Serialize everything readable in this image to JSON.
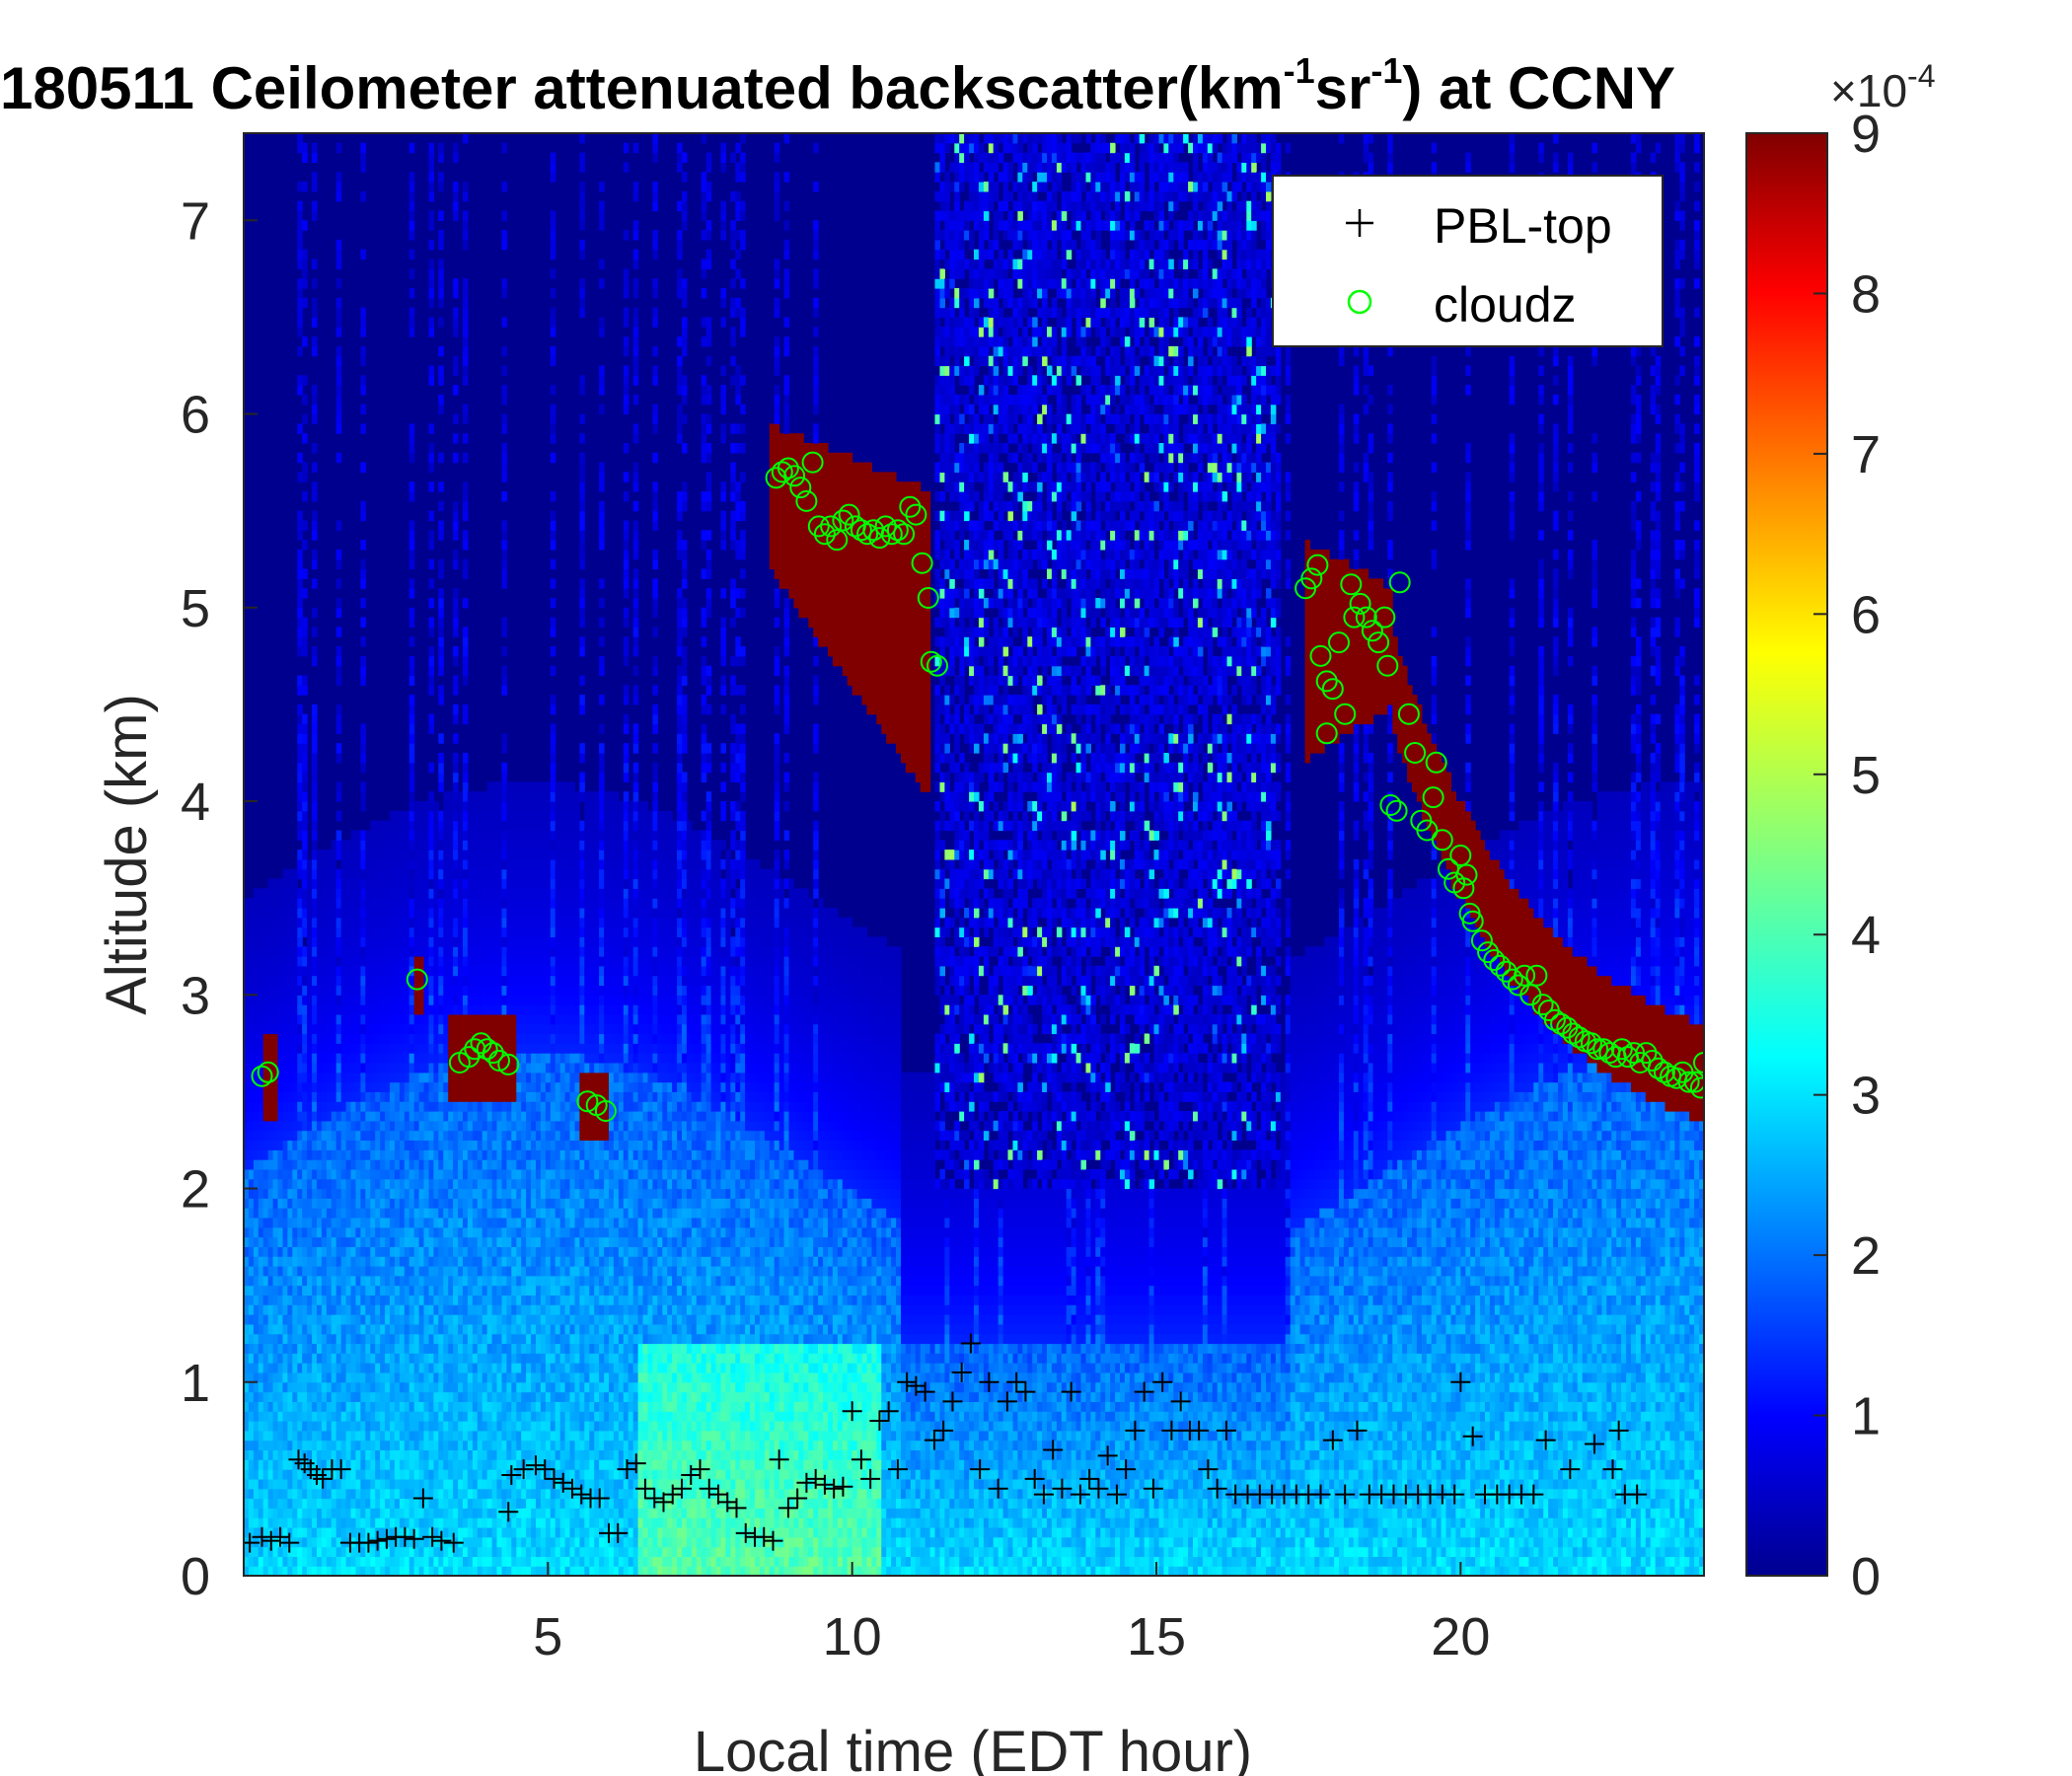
{
  "chart_data": {
    "type": "heatmap",
    "title_parts": {
      "prefix": "180511 Ceilometer attenuated backscatter(km",
      "sup1": "-1",
      "mid": "sr",
      "sup2": "-1",
      "suffix": ") at CCNY"
    },
    "xlabel": "Local time (EDT hour)",
    "ylabel": "Altitude (km)",
    "xlim": [
      0,
      24
    ],
    "ylim": [
      0,
      7.45
    ],
    "xticks": [
      5,
      10,
      15,
      20
    ],
    "yticks": [
      0,
      1,
      2,
      3,
      4,
      5,
      6,
      7
    ],
    "colorbar": {
      "colormap": "jet",
      "range": [
        0,
        9
      ],
      "ticks": [
        0,
        1,
        2,
        3,
        4,
        5,
        6,
        7,
        8,
        9
      ],
      "multiplier_label": "×10",
      "multiplier_exponent": "-4"
    },
    "grid": false,
    "legend": {
      "placement": "top-right",
      "entries": [
        {
          "label": "PBL-top",
          "marker": "+",
          "color": "#000000"
        },
        {
          "label": "cloudz",
          "marker": "o",
          "color": "#00ff00"
        }
      ]
    },
    "series": [
      {
        "name": "PBL-top",
        "points": [
          [
            0.1,
            0.17
          ],
          [
            0.3,
            0.2
          ],
          [
            0.45,
            0.18
          ],
          [
            0.6,
            0.2
          ],
          [
            0.75,
            0.17
          ],
          [
            0.9,
            0.6
          ],
          [
            1.0,
            0.58
          ],
          [
            1.1,
            0.55
          ],
          [
            1.2,
            0.52
          ],
          [
            1.3,
            0.5
          ],
          [
            1.45,
            0.55
          ],
          [
            1.6,
            0.55
          ],
          [
            1.75,
            0.17
          ],
          [
            1.9,
            0.17
          ],
          [
            2.05,
            0.17
          ],
          [
            2.2,
            0.18
          ],
          [
            2.35,
            0.19
          ],
          [
            2.5,
            0.2
          ],
          [
            2.65,
            0.2
          ],
          [
            2.8,
            0.19
          ],
          [
            2.95,
            0.4
          ],
          [
            3.1,
            0.2
          ],
          [
            3.25,
            0.18
          ],
          [
            3.45,
            0.17
          ],
          [
            4.35,
            0.33
          ],
          [
            4.4,
            0.52
          ],
          [
            4.6,
            0.55
          ],
          [
            4.8,
            0.57
          ],
          [
            4.95,
            0.55
          ],
          [
            5.1,
            0.5
          ],
          [
            5.25,
            0.48
          ],
          [
            5.4,
            0.45
          ],
          [
            5.55,
            0.42
          ],
          [
            5.7,
            0.4
          ],
          [
            5.85,
            0.4
          ],
          [
            6.0,
            0.22
          ],
          [
            6.15,
            0.22
          ],
          [
            6.3,
            0.55
          ],
          [
            6.45,
            0.58
          ],
          [
            6.6,
            0.45
          ],
          [
            6.75,
            0.4
          ],
          [
            6.9,
            0.38
          ],
          [
            7.05,
            0.42
          ],
          [
            7.2,
            0.45
          ],
          [
            7.35,
            0.52
          ],
          [
            7.5,
            0.55
          ],
          [
            7.65,
            0.45
          ],
          [
            7.8,
            0.42
          ],
          [
            7.95,
            0.38
          ],
          [
            8.1,
            0.35
          ],
          [
            8.25,
            0.22
          ],
          [
            8.4,
            0.2
          ],
          [
            8.55,
            0.2
          ],
          [
            8.7,
            0.18
          ],
          [
            8.8,
            0.6
          ],
          [
            8.95,
            0.35
          ],
          [
            9.1,
            0.4
          ],
          [
            9.25,
            0.48
          ],
          [
            9.4,
            0.5
          ],
          [
            9.55,
            0.47
          ],
          [
            9.7,
            0.45
          ],
          [
            9.85,
            0.46
          ],
          [
            10.0,
            0.85
          ],
          [
            10.15,
            0.6
          ],
          [
            10.3,
            0.5
          ],
          [
            10.45,
            0.8
          ],
          [
            10.6,
            0.85
          ],
          [
            10.75,
            0.55
          ],
          [
            10.9,
            1.0
          ],
          [
            11.05,
            0.98
          ],
          [
            11.2,
            0.95
          ],
          [
            11.35,
            0.7
          ],
          [
            11.5,
            0.75
          ],
          [
            11.65,
            0.9
          ],
          [
            11.8,
            1.05
          ],
          [
            11.95,
            1.2
          ],
          [
            12.1,
            0.55
          ],
          [
            12.25,
            1.0
          ],
          [
            12.4,
            0.45
          ],
          [
            12.55,
            0.9
          ],
          [
            12.7,
            1.0
          ],
          [
            12.85,
            0.95
          ],
          [
            13.0,
            0.5
          ],
          [
            13.15,
            0.42
          ],
          [
            13.3,
            0.65
          ],
          [
            13.45,
            0.45
          ],
          [
            13.6,
            0.95
          ],
          [
            13.75,
            0.42
          ],
          [
            13.9,
            0.5
          ],
          [
            14.05,
            0.45
          ],
          [
            14.2,
            0.62
          ],
          [
            14.35,
            0.42
          ],
          [
            14.5,
            0.55
          ],
          [
            14.65,
            0.75
          ],
          [
            14.8,
            0.95
          ],
          [
            14.95,
            0.45
          ],
          [
            15.1,
            1.0
          ],
          [
            15.25,
            0.75
          ],
          [
            15.4,
            0.9
          ],
          [
            15.55,
            0.75
          ],
          [
            15.7,
            0.75
          ],
          [
            15.85,
            0.55
          ],
          [
            16.0,
            0.45
          ],
          [
            16.15,
            0.75
          ],
          [
            16.3,
            0.42
          ],
          [
            16.5,
            0.42
          ],
          [
            16.7,
            0.42
          ],
          [
            16.9,
            0.42
          ],
          [
            17.1,
            0.42
          ],
          [
            17.3,
            0.42
          ],
          [
            17.5,
            0.42
          ],
          [
            17.7,
            0.42
          ],
          [
            17.9,
            0.7
          ],
          [
            18.1,
            0.42
          ],
          [
            18.3,
            0.75
          ],
          [
            18.5,
            0.42
          ],
          [
            18.7,
            0.42
          ],
          [
            18.9,
            0.42
          ],
          [
            19.1,
            0.42
          ],
          [
            19.3,
            0.42
          ],
          [
            19.5,
            0.42
          ],
          [
            19.7,
            0.42
          ],
          [
            19.9,
            0.42
          ],
          [
            20.0,
            1.0
          ],
          [
            20.2,
            0.72
          ],
          [
            20.4,
            0.42
          ],
          [
            20.6,
            0.42
          ],
          [
            20.8,
            0.42
          ],
          [
            21.0,
            0.42
          ],
          [
            21.2,
            0.42
          ],
          [
            21.4,
            0.7
          ],
          [
            21.8,
            0.55
          ],
          [
            22.2,
            0.68
          ],
          [
            22.5,
            0.55
          ],
          [
            22.6,
            0.75
          ],
          [
            22.7,
            0.42
          ],
          [
            22.9,
            0.42
          ]
        ]
      },
      {
        "name": "cloudz",
        "points": [
          [
            0.3,
            2.58
          ],
          [
            0.4,
            2.6
          ],
          [
            2.85,
            3.08
          ],
          [
            3.55,
            2.65
          ],
          [
            3.7,
            2.68
          ],
          [
            3.8,
            2.72
          ],
          [
            3.9,
            2.75
          ],
          [
            4.0,
            2.72
          ],
          [
            4.1,
            2.7
          ],
          [
            4.2,
            2.66
          ],
          [
            4.35,
            2.64
          ],
          [
            5.65,
            2.45
          ],
          [
            5.8,
            2.43
          ],
          [
            5.95,
            2.4
          ],
          [
            8.75,
            5.67
          ],
          [
            8.85,
            5.7
          ],
          [
            8.95,
            5.72
          ],
          [
            9.05,
            5.68
          ],
          [
            9.15,
            5.62
          ],
          [
            9.25,
            5.55
          ],
          [
            9.35,
            5.75
          ],
          [
            9.45,
            5.42
          ],
          [
            9.55,
            5.38
          ],
          [
            9.65,
            5.42
          ],
          [
            9.75,
            5.35
          ],
          [
            9.85,
            5.45
          ],
          [
            9.95,
            5.48
          ],
          [
            10.05,
            5.42
          ],
          [
            10.15,
            5.4
          ],
          [
            10.25,
            5.38
          ],
          [
            10.35,
            5.4
          ],
          [
            10.45,
            5.36
          ],
          [
            10.55,
            5.42
          ],
          [
            10.65,
            5.38
          ],
          [
            10.75,
            5.4
          ],
          [
            10.85,
            5.38
          ],
          [
            10.95,
            5.52
          ],
          [
            11.05,
            5.48
          ],
          [
            11.15,
            5.23
          ],
          [
            11.25,
            5.05
          ],
          [
            11.3,
            4.72
          ],
          [
            11.4,
            4.7
          ],
          [
            17.45,
            5.1
          ],
          [
            17.55,
            5.15
          ],
          [
            17.65,
            5.22
          ],
          [
            17.7,
            4.75
          ],
          [
            17.8,
            4.62
          ],
          [
            17.9,
            4.58
          ],
          [
            17.8,
            4.35
          ],
          [
            18.0,
            4.82
          ],
          [
            18.1,
            4.45
          ],
          [
            18.2,
            5.12
          ],
          [
            18.25,
            4.95
          ],
          [
            18.35,
            5.02
          ],
          [
            18.45,
            4.95
          ],
          [
            18.55,
            4.88
          ],
          [
            18.65,
            4.82
          ],
          [
            18.75,
            4.95
          ],
          [
            18.8,
            4.7
          ],
          [
            18.85,
            3.98
          ],
          [
            18.95,
            3.95
          ],
          [
            19.0,
            5.13
          ],
          [
            19.15,
            4.45
          ],
          [
            19.25,
            4.25
          ],
          [
            19.35,
            3.9
          ],
          [
            19.45,
            3.85
          ],
          [
            19.55,
            4.02
          ],
          [
            19.6,
            4.2
          ],
          [
            19.7,
            3.8
          ],
          [
            19.8,
            3.65
          ],
          [
            19.9,
            3.58
          ],
          [
            20.0,
            3.72
          ],
          [
            20.05,
            3.55
          ],
          [
            20.1,
            3.62
          ],
          [
            20.15,
            3.42
          ],
          [
            20.2,
            3.38
          ],
          [
            20.35,
            3.28
          ],
          [
            20.45,
            3.22
          ],
          [
            20.55,
            3.18
          ],
          [
            20.65,
            3.15
          ],
          [
            20.75,
            3.12
          ],
          [
            20.85,
            3.08
          ],
          [
            20.95,
            3.05
          ],
          [
            21.05,
            3.1
          ],
          [
            21.15,
            3.0
          ],
          [
            21.25,
            3.1
          ],
          [
            21.35,
            2.95
          ],
          [
            21.45,
            2.92
          ],
          [
            21.55,
            2.87
          ],
          [
            21.65,
            2.85
          ],
          [
            21.75,
            2.83
          ],
          [
            21.85,
            2.8
          ],
          [
            21.95,
            2.78
          ],
          [
            22.05,
            2.76
          ],
          [
            22.15,
            2.75
          ],
          [
            22.25,
            2.72
          ],
          [
            22.35,
            2.72
          ],
          [
            22.45,
            2.7
          ],
          [
            22.55,
            2.68
          ],
          [
            22.65,
            2.72
          ],
          [
            22.75,
            2.68
          ],
          [
            22.85,
            2.7
          ],
          [
            22.95,
            2.65
          ],
          [
            23.05,
            2.7
          ],
          [
            23.15,
            2.66
          ],
          [
            23.25,
            2.62
          ],
          [
            23.35,
            2.6
          ],
          [
            23.45,
            2.58
          ],
          [
            23.55,
            2.57
          ],
          [
            23.65,
            2.6
          ],
          [
            23.75,
            2.55
          ],
          [
            23.85,
            2.55
          ],
          [
            23.95,
            2.52
          ],
          [
            24.0,
            2.65
          ]
        ]
      }
    ]
  }
}
